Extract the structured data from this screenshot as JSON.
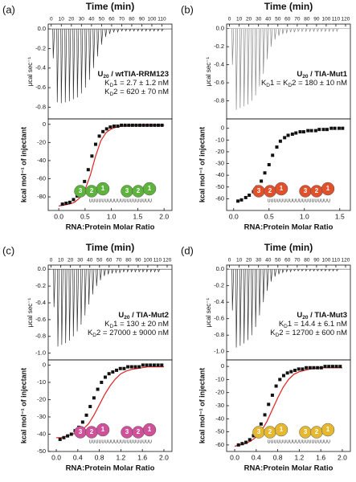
{
  "chart_data": [
    {
      "type": "itc",
      "panel_label": "(a)",
      "raw": {
        "title": "Time (min)",
        "y_label": "μcal sec⁻¹",
        "xlim": [
          -3,
          120
        ],
        "xticks": [
          0,
          10,
          20,
          30,
          40,
          50,
          60,
          70,
          80,
          90,
          100,
          110
        ],
        "ylim": [
          -0.92,
          0.05
        ],
        "yticks": [
          -0.8,
          -0.6,
          -0.4,
          -0.2,
          {
            "value": 0,
            "label": "0.0"
          }
        ],
        "color": "#333333",
        "x": [
          2,
          6,
          10,
          14,
          18,
          22,
          26,
          30,
          34,
          38,
          42,
          46,
          50,
          54,
          58,
          62,
          66,
          70,
          74,
          78,
          82,
          86,
          90,
          94,
          98,
          102,
          106,
          110
        ],
        "values": [
          -0.3,
          -0.75,
          -0.76,
          -0.75,
          -0.74,
          -0.72,
          -0.7,
          -0.66,
          -0.6,
          -0.52,
          -0.4,
          -0.28,
          -0.16,
          -0.08,
          -0.05,
          -0.03,
          -0.03,
          -0.02,
          -0.02,
          -0.02,
          -0.02,
          -0.02,
          -0.02,
          -0.02,
          -0.02,
          -0.02,
          -0.02,
          -0.02
        ]
      },
      "annotation": [
        [
          "U",
          "20",
          " / wtTIA-RRM123"
        ],
        [
          "K",
          "D",
          "1 = 2.7 ± 1.2 nM"
        ],
        [
          "K",
          "D",
          "2 = 620 ± 70 nM"
        ]
      ],
      "binding": {
        "x_label": "RNA:Protein Molar Ratio",
        "y_label": "kcal mol⁻¹ of injectant",
        "xlim": [
          -0.2,
          2.15
        ],
        "xticks": [
          {
            "value": 0,
            "label": "0.0"
          },
          0.5,
          {
            "value": 1,
            "label": "1.0"
          },
          1.5,
          {
            "value": 2,
            "label": "2.0"
          }
        ],
        "ylim": [
          -95,
          6
        ],
        "yticks": [
          -80,
          -60,
          -40,
          -20,
          0
        ],
        "x": [
          0.07,
          0.14,
          0.21,
          0.28,
          0.35,
          0.42,
          0.49,
          0.56,
          0.63,
          0.7,
          0.77,
          0.84,
          0.91,
          0.98,
          1.05,
          1.12,
          1.19,
          1.26,
          1.33,
          1.4,
          1.47,
          1.54,
          1.61,
          1.68,
          1.75,
          1.82,
          1.89,
          1.96
        ],
        "values": [
          -88,
          -87,
          -86,
          -83,
          -79,
          -73,
          -63,
          -50,
          -35,
          -22,
          -13,
          -8,
          -5,
          -3,
          -2,
          -2,
          -1,
          -1,
          -1,
          -1,
          -1,
          -1,
          -1,
          -1,
          -1,
          -1,
          -1,
          -1
        ],
        "fit": {
          "color": "#e02020",
          "x": [
            0,
            0.1,
            0.2,
            0.3,
            0.4,
            0.5,
            0.6,
            0.7,
            0.8,
            0.9,
            1,
            1.1,
            1.2,
            1.3,
            1.4,
            1.5,
            1.6,
            1.7,
            1.8,
            1.9,
            2
          ],
          "values": [
            -90,
            -89,
            -88,
            -86,
            -81,
            -72,
            -56,
            -35,
            -18,
            -9,
            -5,
            -3,
            -2,
            -1.5,
            -1,
            -1,
            -1,
            -1,
            -1,
            -1,
            -1
          ]
        }
      },
      "cartoon": {
        "color": "#5db33c",
        "proteins": [
          [
            3,
            2,
            1
          ],
          [
            3,
            2,
            1
          ]
        ],
        "rna": "UUUUUUUUUUUUUUUUUUUU"
      }
    },
    {
      "type": "itc",
      "panel_label": "(b)",
      "raw": {
        "title": "Time (min)",
        "y_label": "μcal sec⁻¹",
        "xlim": [
          -3,
          125
        ],
        "xticks": [
          0,
          10,
          20,
          30,
          40,
          50,
          60,
          70,
          80,
          90,
          100,
          110,
          120
        ],
        "ylim": [
          -1.0,
          0.05
        ],
        "yticks": [
          -0.8,
          -0.6,
          -0.4,
          -0.2,
          {
            "value": 0,
            "label": "0.0"
          }
        ],
        "color": "#888888",
        "x": [
          3,
          7,
          11,
          15,
          19,
          23,
          27,
          31,
          35,
          39,
          43,
          47,
          51,
          55,
          59,
          63,
          67,
          71,
          75,
          79,
          83,
          87,
          91,
          95,
          99,
          103,
          107,
          111
        ],
        "values": [
          -0.4,
          -0.9,
          -0.88,
          -0.86,
          -0.84,
          -0.8,
          -0.74,
          -0.64,
          -0.5,
          -0.34,
          -0.2,
          -0.12,
          -0.08,
          -0.06,
          -0.05,
          -0.04,
          -0.04,
          -0.03,
          -0.03,
          -0.03,
          -0.03,
          -0.03,
          -0.03,
          -0.03,
          -0.03,
          -0.03,
          -0.03,
          -0.03
        ]
      },
      "annotation": [
        [
          "U",
          "20",
          " / TIA-Mut1"
        ],
        [
          "K",
          "D",
          "1 = K",
          "D",
          "2 = 180 ± 10 nM"
        ]
      ],
      "binding": {
        "x_label": "RNA:Protein Molar Ratio",
        "y_label": "kcal mol⁻¹ of injectant",
        "xlim": [
          -0.1,
          1.65
        ],
        "xticks": [
          {
            "value": 0,
            "label": "0.0"
          },
          0.5,
          {
            "value": 1,
            "label": "1.0"
          },
          1.5
        ],
        "ylim": [
          -70,
          8
        ],
        "yticks": [
          -60,
          -50,
          -40,
          -30,
          -20,
          -10,
          0
        ],
        "x": [
          0.06,
          0.11,
          0.17,
          0.22,
          0.28,
          0.33,
          0.39,
          0.44,
          0.5,
          0.55,
          0.61,
          0.66,
          0.72,
          0.77,
          0.83,
          0.88,
          0.94,
          0.99,
          1.05,
          1.1,
          1.16,
          1.21,
          1.27,
          1.32,
          1.38,
          1.43,
          1.49,
          1.54
        ],
        "values": [
          -62,
          -61,
          -59,
          -57,
          -54,
          -50,
          -45,
          -38,
          -31,
          -23,
          -16,
          -11,
          -8,
          -6,
          -5,
          -4,
          -3,
          -3,
          -2,
          -2,
          -2,
          -1,
          -1,
          -1,
          0,
          0,
          0,
          0
        ]
      },
      "cartoon": {
        "color": "#e0502a",
        "proteins": [
          [
            3,
            2,
            1
          ],
          [
            3,
            2,
            1
          ]
        ],
        "rna": "UUUUUUUUUUUUUUUUUUUU"
      }
    },
    {
      "type": "itc",
      "panel_label": "(c)",
      "raw": {
        "title": "Time (min)",
        "y_label": "μcal sec⁻¹",
        "xlim": [
          -3,
          125
        ],
        "xticks": [
          0,
          10,
          20,
          30,
          40,
          50,
          60,
          70,
          80,
          90,
          100,
          110,
          120
        ],
        "ylim": [
          -1.08,
          0.05
        ],
        "yticks": [
          {
            "value": -1,
            "label": "-1.0"
          },
          -0.8,
          -0.6,
          -0.4,
          -0.2,
          {
            "value": 0,
            "label": "0.0"
          }
        ],
        "color": "#333333",
        "x": [
          3,
          7,
          11,
          15,
          19,
          23,
          27,
          31,
          35,
          39,
          43,
          47,
          51,
          55,
          59,
          63,
          67,
          71,
          75,
          79,
          83,
          87,
          91,
          95,
          99,
          103,
          107,
          111
        ],
        "values": [
          -0.45,
          -0.92,
          -0.9,
          -0.88,
          -0.85,
          -0.8,
          -0.74,
          -0.66,
          -0.55,
          -0.42,
          -0.3,
          -0.2,
          -0.13,
          -0.08,
          -0.06,
          -0.05,
          -0.04,
          -0.04,
          -0.03,
          -0.03,
          -0.03,
          -0.03,
          -0.03,
          -0.03,
          -0.03,
          -0.03,
          -0.03,
          -0.03
        ]
      },
      "annotation": [
        [
          "U",
          "20",
          " / TIA-Mut2"
        ],
        [
          "K",
          "D",
          "1 = 130 ± 20 nM"
        ],
        [
          "K",
          "D",
          "2 = 27000 ± 9000 nM"
        ]
      ],
      "binding": {
        "x_label": "RNA:Protein Molar Ratio",
        "y_label": "kcal mol⁻¹ of injectant",
        "xlim": [
          -0.15,
          2.15
        ],
        "xticks": [
          {
            "value": 0,
            "label": "0.0"
          },
          0.4,
          0.8,
          1.2,
          1.6,
          {
            "value": 2,
            "label": "2.0"
          }
        ],
        "ylim": [
          -50,
          3
        ],
        "yticks": [
          -50,
          -40,
          -30,
          -20,
          -10,
          0
        ],
        "x": [
          0.07,
          0.14,
          0.21,
          0.28,
          0.35,
          0.42,
          0.49,
          0.56,
          0.63,
          0.7,
          0.77,
          0.84,
          0.91,
          0.98,
          1.05,
          1.12,
          1.19,
          1.26,
          1.33,
          1.4,
          1.47,
          1.54,
          1.61,
          1.68,
          1.75,
          1.82,
          1.89,
          1.96
        ],
        "values": [
          -43,
          -42,
          -41,
          -40,
          -38,
          -36,
          -33,
          -29,
          -24,
          -19,
          -14,
          -10,
          -7,
          -5,
          -4,
          -3,
          -2,
          -2,
          -1,
          -1,
          -1,
          -1,
          0,
          0,
          0,
          0,
          0,
          0
        ],
        "fit": {
          "color": "#e02020",
          "x": [
            0,
            0.1,
            0.2,
            0.3,
            0.4,
            0.5,
            0.6,
            0.7,
            0.8,
            0.9,
            1,
            1.1,
            1.2,
            1.3,
            1.4,
            1.5,
            1.6,
            1.7,
            1.8,
            1.9,
            2
          ],
          "values": [
            -42,
            -42,
            -41,
            -40,
            -39,
            -37,
            -34,
            -29,
            -23,
            -17,
            -12,
            -8,
            -5,
            -3.5,
            -2.5,
            -2,
            -1.5,
            -1,
            -1,
            -1,
            -1
          ]
        }
      },
      "cartoon": {
        "color": "#d0509a",
        "proteins": [
          [
            3,
            2,
            1
          ],
          [
            3,
            2,
            1
          ]
        ],
        "rna": "UUUUUUUUUUUUUUUUUUUU"
      }
    },
    {
      "type": "itc",
      "panel_label": "(d)",
      "raw": {
        "title": "Time (min)",
        "y_label": "μcal sec⁻¹",
        "xlim": [
          -3,
          125
        ],
        "xticks": [
          0,
          10,
          20,
          30,
          40,
          50,
          60,
          70,
          80,
          90,
          100,
          110,
          120
        ],
        "ylim": [
          -1.1,
          0.05
        ],
        "yticks": [
          {
            "value": -1,
            "label": "-1.0"
          },
          -0.8,
          -0.6,
          -0.4,
          -0.2,
          {
            "value": 0,
            "label": "0.0"
          }
        ],
        "color": "#333333",
        "x": [
          3,
          7,
          11,
          15,
          19,
          23,
          27,
          31,
          35,
          39,
          43,
          47,
          51,
          55,
          59,
          63,
          67,
          71,
          75,
          79,
          83,
          87,
          91,
          95,
          99,
          103,
          107,
          111
        ],
        "values": [
          -0.5,
          -0.95,
          -0.93,
          -0.9,
          -0.86,
          -0.8,
          -0.7,
          -0.56,
          -0.4,
          -0.26,
          -0.15,
          -0.09,
          -0.06,
          -0.04,
          -0.03,
          -0.03,
          -0.02,
          -0.02,
          -0.02,
          -0.02,
          -0.02,
          -0.02,
          -0.02,
          -0.02,
          -0.02,
          -0.02,
          -0.02,
          -0.02
        ]
      },
      "annotation": [
        [
          "U",
          "20",
          " / TIA-Mut3"
        ],
        [
          "K",
          "D",
          "1 = 14.4 ± 6.1 nM"
        ],
        [
          "K",
          "D",
          "2 = 12700 ± 600 nM"
        ]
      ],
      "binding": {
        "x_label": "RNA:Protein Molar Ratio",
        "y_label": "kcal mol⁻¹ of injectant",
        "xlim": [
          -0.15,
          2.15
        ],
        "xticks": [
          {
            "value": 0,
            "label": "0.0"
          },
          0.4,
          0.8,
          1.2,
          1.6,
          {
            "value": 2,
            "label": "2.0"
          }
        ],
        "ylim": [
          -65,
          5
        ],
        "yticks": [
          -60,
          -50,
          -40,
          -30,
          -20,
          -10,
          0
        ],
        "x": [
          0.07,
          0.14,
          0.21,
          0.28,
          0.35,
          0.42,
          0.49,
          0.56,
          0.63,
          0.7,
          0.77,
          0.84,
          0.91,
          0.98,
          1.05,
          1.12,
          1.19,
          1.26,
          1.33,
          1.4,
          1.47,
          1.54,
          1.61,
          1.68,
          1.75,
          1.82,
          1.89,
          1.96
        ],
        "values": [
          -60,
          -59,
          -58,
          -56,
          -53,
          -49,
          -44,
          -37,
          -29,
          -22,
          -15,
          -10,
          -7,
          -5,
          -4,
          -3,
          -2,
          -2,
          -1,
          -1,
          -1,
          -1,
          -1,
          0,
          0,
          0,
          0,
          0
        ],
        "fit": {
          "color": "#e02020",
          "x": [
            0,
            0.1,
            0.2,
            0.3,
            0.4,
            0.5,
            0.6,
            0.7,
            0.8,
            0.9,
            1,
            1.1,
            1.2,
            1.3,
            1.4,
            1.5,
            1.6,
            1.7,
            1.8,
            1.9,
            2
          ],
          "values": [
            -61,
            -60,
            -59,
            -57,
            -54,
            -49,
            -42,
            -33,
            -24,
            -16,
            -10,
            -6,
            -4,
            -3,
            -2,
            -1.5,
            -1,
            -1,
            -1,
            -1,
            -1
          ]
        }
      },
      "cartoon": {
        "color": "#e6b830",
        "proteins": [
          [
            3,
            2,
            1
          ],
          [
            3,
            2,
            1
          ]
        ],
        "rna": "UUUUUUUUUUUUUUUUUUUU"
      }
    }
  ]
}
